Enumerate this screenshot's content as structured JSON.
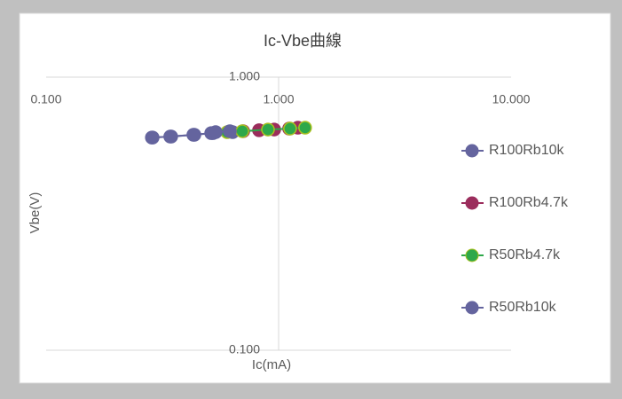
{
  "chart_data": {
    "type": "scatter",
    "title": "Ic-Vbe曲線",
    "x_label": "Ic(mA)",
    "y_label": "Vbe(V)",
    "log_x": true,
    "log_y": true,
    "grid": true,
    "legend": "right",
    "xlim": [
      0.1,
      10
    ],
    "ylim": [
      0.1,
      1
    ],
    "xticks": [
      {
        "value": 0.1,
        "label": "0.100"
      },
      {
        "value": 1,
        "label": "1.000"
      },
      {
        "value": 10,
        "label": "10.000"
      }
    ],
    "yticks": [
      {
        "value": 0.1,
        "label": "0.100"
      },
      {
        "value": 1,
        "label": "1.000"
      }
    ],
    "series": [
      {
        "name": "R100Rb10k",
        "color": "#64649e",
        "x": [
          0.287,
          0.345,
          0.434,
          0.522,
          0.634
        ],
        "values": [
          0.601,
          0.606,
          0.615,
          0.624,
          0.629
        ]
      },
      {
        "name": "R100Rb4.7k",
        "color": "#9b2d5c",
        "x": [
          0.704,
          0.824,
          0.957,
          1.11,
          1.21
        ],
        "values": [
          0.634,
          0.639,
          0.643,
          0.648,
          0.653
        ]
      },
      {
        "name": "R50Rb4.7k",
        "color": "#2ea84a",
        "x": [
          0.601,
          0.698,
          0.9,
          1.12,
          1.3
        ],
        "values": [
          0.629,
          0.634,
          0.643,
          0.648,
          0.653
        ]
      },
      {
        "name": "R50Rb10k",
        "color": "#64649e",
        "x": [
          0.285,
          0.342,
          0.43,
          0.513,
          0.536,
          0.617
        ],
        "values": [
          0.601,
          0.606,
          0.615,
          0.624,
          0.629,
          0.634
        ]
      }
    ]
  }
}
